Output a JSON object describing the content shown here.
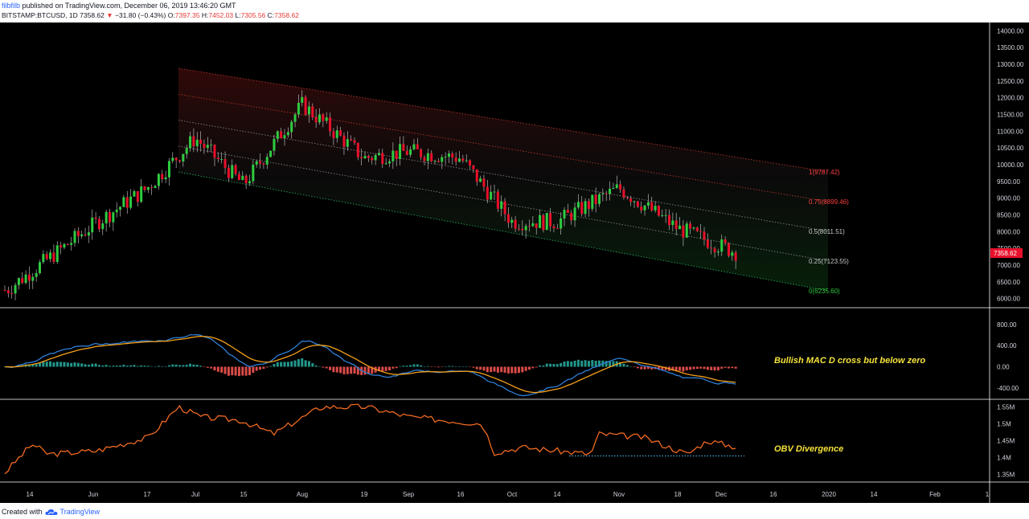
{
  "header": {
    "author": "filbfilb",
    "published_text": "published on TradingView.com, December 06, 2019 13:46:20 GMT",
    "symbol": "BITSTAMP:BTCUSD, 1D",
    "last": "7358.62",
    "change_arrow": "▼",
    "change": "−31.80 (−0.43%)",
    "o_label": "O:",
    "o_value": "7397.35",
    "h_label": "H:",
    "h_value": "7452.03",
    "l_label": "L:",
    "l_value": "7305.56",
    "c_label": "C:",
    "c_value": "7358.62"
  },
  "colors": {
    "background": "#000000",
    "up": "#2ecc40",
    "down": "#e8102a",
    "macd_line": "#2f7fd6",
    "signal_line": "#f6a019",
    "hist_pos": "#26a69a",
    "hist_neg": "#ef5350",
    "obv_line": "#f06a20",
    "annotation": "#f5e33b",
    "price_tag": "#e8102a"
  },
  "price_axis": [
    "14000.00",
    "13500.00",
    "13000.00",
    "12500.00",
    "12000.00",
    "11500.00",
    "11000.00",
    "10500.00",
    "10000.00",
    "9500.00",
    "9000.00",
    "8500.00",
    "8000.00",
    "7500.00",
    "7000.00",
    "6500.00",
    "6000.00"
  ],
  "price_tag": "7358.62",
  "fib_labels": [
    {
      "text": "1(9787.42)",
      "level": 1
    },
    {
      "text": "0.75(8899.46)",
      "level": 0.75
    },
    {
      "text": "0.5(8011.51)",
      "level": 0.5
    },
    {
      "text": "0.25(7123.55)",
      "level": 0.25
    },
    {
      "text": "0(6235.60)",
      "level": 0
    }
  ],
  "macd_axis": [
    "800.00",
    "400.00",
    "0.00",
    "-400.00"
  ],
  "obv_axis": [
    "1.55M",
    "1.5M",
    "1.45M",
    "1.4M",
    "1.35M"
  ],
  "time_axis": [
    "14",
    "Jun",
    "17",
    "Jul",
    "15",
    "Aug",
    "19",
    "Sep",
    "16",
    "Oct",
    "14",
    "Nov",
    "18",
    "Dec",
    "16",
    "2020",
    "14",
    "Feb",
    "1"
  ],
  "annotations": {
    "macd": "Bullish MAC D cross but below zero",
    "obv": "OBV Divergence"
  },
  "footer": {
    "created_with": "Created with",
    "brand": "TradingView"
  },
  "chart_data": {
    "type": "candlestick",
    "title": "",
    "x_ticks": [
      "14",
      "Jun",
      "17",
      "Jul",
      "15",
      "Aug",
      "19",
      "Sep",
      "16",
      "Oct",
      "14",
      "Nov",
      "18",
      "Dec",
      "16",
      "2020",
      "14",
      "Feb",
      "1"
    ],
    "price_range": [
      5750,
      14250
    ],
    "close_path": [
      [
        "14",
        6250
      ],
      [
        "Jun",
        8200
      ],
      [
        "17",
        9300
      ],
      [
        "Jul",
        10800
      ],
      [
        "15",
        9400
      ],
      [
        "Aug",
        11800
      ],
      [
        "19",
        10200
      ],
      [
        "Sep",
        10400
      ],
      [
        "16",
        10200
      ],
      [
        "Oct",
        8300
      ],
      [
        "14",
        8300
      ],
      [
        "Nov",
        9300
      ],
      [
        "18",
        8100
      ],
      [
        "Dec",
        7358.62
      ]
    ],
    "fib_channel": [
      {
        "level": 1,
        "value": 9787.42
      },
      {
        "level": 0.75,
        "value": 8899.46
      },
      {
        "level": 0.5,
        "value": 8011.51
      },
      {
        "level": 0.25,
        "value": 7123.55
      },
      {
        "level": 0,
        "value": 6235.6
      }
    ],
    "macd_range": [
      -600,
      1100
    ],
    "obv_range": [
      1.33,
      1.57
    ],
    "obv_divergence_level": 1.405
  }
}
